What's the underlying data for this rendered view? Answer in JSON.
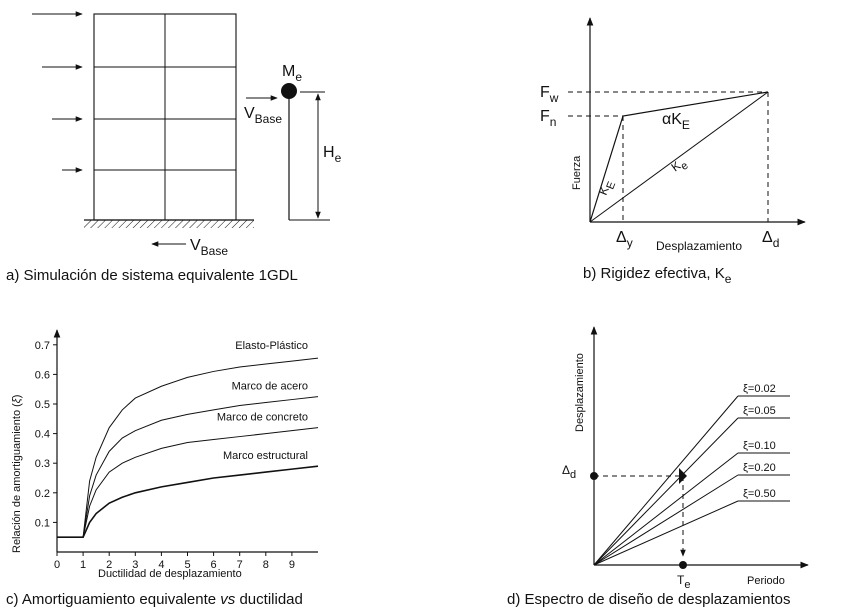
{
  "panel_a": {
    "mass_label": "M",
    "mass_sub": "e",
    "base_top_label": "V",
    "base_top_sub": "Base",
    "height_label": "H",
    "height_sub": "e",
    "base_bottom_label": "V",
    "base_bottom_sub": "Base",
    "caption": "a) Simulación de sistema equivalente 1GDL"
  },
  "panel_b": {
    "y_axis_label": "Fuerza",
    "x_axis_label": "Desplazamiento",
    "fw_label": "F",
    "fw_sub": "w",
    "fn_label": "F",
    "fn_sub": "n",
    "alpha_label": "αK",
    "alpha_sub": "E",
    "ke_initial_label": "K",
    "ke_initial_sub": "E",
    "ke_secant_label": "K",
    "ke_secant_sub": "e",
    "dy_label": "Δ",
    "dy_sub": "y",
    "dd_label": "Δ",
    "dd_sub": "d",
    "caption": "b) Rigidez efectiva, K",
    "caption_sub": "e"
  },
  "panel_c": {
    "ylabel_pre": "Relación de amortiguamiento (",
    "ylabel_sym": "ξ",
    "ylabel_post": ")",
    "xlabel": "Ductilidad de desplazamiento",
    "caption_pre": "c) Amortiguamiento equivalente ",
    "caption_em": "vs",
    "caption_post": " ductilidad",
    "chart_data": {
      "type": "line",
      "x_ticks": [
        "0",
        "1",
        "2",
        "3",
        "4",
        "5",
        "6",
        "7",
        "8",
        "9"
      ],
      "y_ticks": [
        "0.1",
        "0.2",
        "0.3",
        "0.4",
        "0.5",
        "0.6",
        "0.7"
      ],
      "xlim": [
        0,
        10
      ],
      "ylim": [
        0,
        0.75
      ],
      "x": [
        0,
        1,
        1.25,
        1.5,
        2,
        2.5,
        3,
        4,
        5,
        6,
        7,
        8,
        9,
        10
      ],
      "series": [
        {
          "name": "Elasto-Plástico",
          "values": [
            0.05,
            0.05,
            0.24,
            0.32,
            0.42,
            0.48,
            0.52,
            0.56,
            0.59,
            0.61,
            0.625,
            0.635,
            0.645,
            0.655
          ]
        },
        {
          "name": "Marco de acero",
          "values": [
            0.05,
            0.05,
            0.19,
            0.26,
            0.34,
            0.385,
            0.41,
            0.445,
            0.465,
            0.48,
            0.495,
            0.505,
            0.515,
            0.525
          ]
        },
        {
          "name": "Marco de concreto",
          "values": [
            0.05,
            0.05,
            0.155,
            0.21,
            0.27,
            0.3,
            0.32,
            0.35,
            0.37,
            0.38,
            0.39,
            0.4,
            0.41,
            0.42
          ]
        },
        {
          "name": "Marco estructural",
          "values": [
            0.05,
            0.05,
            0.1,
            0.13,
            0.165,
            0.185,
            0.2,
            0.22,
            0.235,
            0.25,
            0.26,
            0.27,
            0.28,
            0.29
          ]
        }
      ]
    }
  },
  "panel_d": {
    "y_axis_label": "Desplazamiento",
    "x_axis_label": "Periodo",
    "dd_label": "Δ",
    "dd_sub": "d",
    "te_label": "T",
    "te_sub": "e",
    "caption": "d) Espectro de diseño de desplazamientos",
    "series_labels": [
      "ξ=0.02",
      "ξ=0.05",
      "ξ=0.10",
      "ξ=0.20",
      "ξ=0.50"
    ]
  }
}
